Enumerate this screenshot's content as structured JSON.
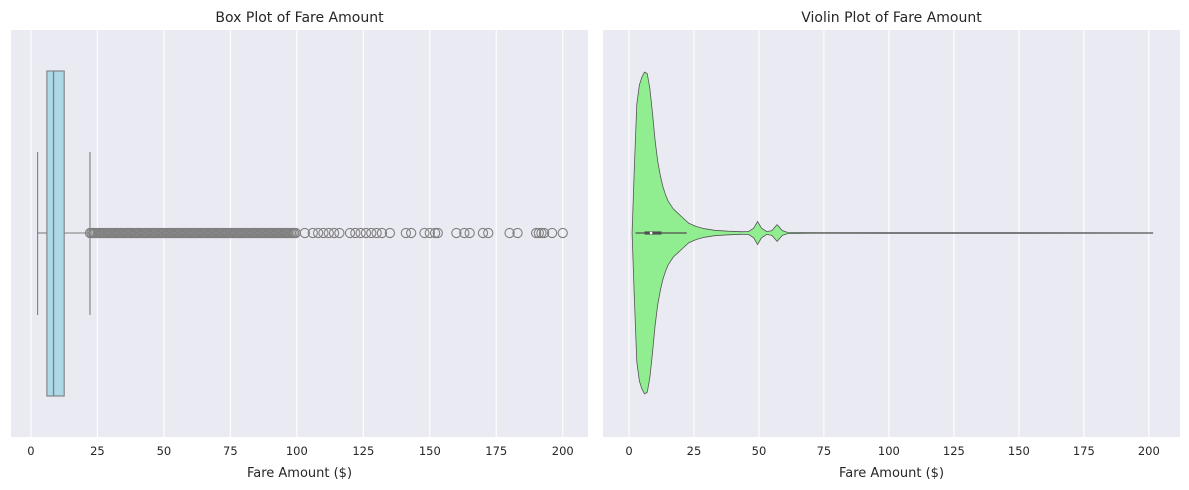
{
  "chart_data": [
    {
      "type": "box",
      "title": "Box Plot of Fare Amount",
      "xlabel": "Fare Amount ($)",
      "ylabel": "",
      "xlim": [
        -7.5,
        209.5
      ],
      "xticks": [
        0,
        25,
        50,
        75,
        100,
        125,
        150,
        175,
        200
      ],
      "grid": true,
      "box": {
        "whisker_low": 2.5,
        "q1": 6.0,
        "median": 8.5,
        "q3": 12.5,
        "whisker_high": 22.2,
        "outlier_range": [
          22.2,
          100
        ],
        "outliers": [
          103,
          106,
          108,
          110,
          112,
          114,
          116,
          120,
          122,
          124,
          126,
          128,
          130,
          132,
          135,
          141,
          143,
          148,
          150,
          152,
          153,
          160,
          163,
          165,
          170,
          172,
          180,
          183,
          190,
          191,
          192,
          193,
          196,
          200
        ],
        "fill_color": "#add8e6",
        "line_color": "#7f7f7f"
      }
    },
    {
      "type": "violin",
      "title": "Violin Plot of Fare Amount",
      "xlabel": "Fare Amount ($)",
      "ylabel": "",
      "xlim": [
        -10,
        212
      ],
      "xticks": [
        0,
        25,
        50,
        75,
        100,
        125,
        150,
        175,
        200
      ],
      "grid": true,
      "violin": {
        "density_profile": [
          [
            1.2,
            0.0
          ],
          [
            2,
            0.38
          ],
          [
            3,
            0.8
          ],
          [
            4,
            0.92
          ],
          [
            5,
            0.97
          ],
          [
            6,
            1.0
          ],
          [
            7,
            0.99
          ],
          [
            8,
            0.9
          ],
          [
            9,
            0.75
          ],
          [
            10,
            0.58
          ],
          [
            11,
            0.45
          ],
          [
            12,
            0.36
          ],
          [
            13,
            0.29
          ],
          [
            14,
            0.24
          ],
          [
            15,
            0.2
          ],
          [
            17,
            0.15
          ],
          [
            19,
            0.12
          ],
          [
            21,
            0.09
          ],
          [
            23,
            0.06
          ],
          [
            26,
            0.04
          ],
          [
            29,
            0.027
          ],
          [
            33,
            0.017
          ],
          [
            38,
            0.011
          ],
          [
            43,
            0.008
          ],
          [
            46,
            0.009
          ],
          [
            48,
            0.03
          ],
          [
            49.5,
            0.072
          ],
          [
            51,
            0.03
          ],
          [
            53,
            0.009
          ],
          [
            55,
            0.015
          ],
          [
            57,
            0.052
          ],
          [
            59,
            0.015
          ],
          [
            61,
            0.004
          ],
          [
            70,
            0.0025
          ],
          [
            100,
            0.002
          ],
          [
            150,
            0.002
          ],
          [
            201.5,
            0.0015
          ]
        ],
        "inner_box": {
          "whisker_low": 2.5,
          "q1": 6.0,
          "median": 8.5,
          "q3": 12.5,
          "whisker_high": 22.2
        },
        "fill_color": "#90ee90",
        "line_color": "#555555"
      }
    }
  ],
  "colors": {
    "figure_bg": "#ffffff",
    "axes_bg": "#eaeaf2",
    "grid": "#ffffff",
    "text": "#262626"
  }
}
